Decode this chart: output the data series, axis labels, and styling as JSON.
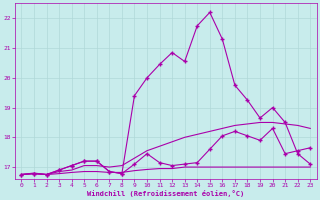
{
  "xlabel": "Windchill (Refroidissement éolien,°C)",
  "background_color": "#c8ecec",
  "grid_color": "#b0d8d8",
  "line_color": "#aa00aa",
  "xlim": [
    -0.5,
    23.5
  ],
  "ylim": [
    16.6,
    22.5
  ],
  "yticks": [
    17,
    18,
    19,
    20,
    21,
    22
  ],
  "xticks": [
    0,
    1,
    2,
    3,
    4,
    5,
    6,
    7,
    8,
    9,
    10,
    11,
    12,
    13,
    14,
    15,
    16,
    17,
    18,
    19,
    20,
    21,
    22,
    23
  ],
  "series": [
    {
      "x": [
        0,
        1,
        2,
        3,
        4,
        5,
        6,
        7,
        8,
        9,
        10,
        11,
        12,
        13,
        14,
        15,
        16,
        17,
        18,
        19,
        20,
        21,
        22,
        23
      ],
      "y": [
        16.75,
        16.78,
        16.75,
        16.78,
        16.82,
        16.85,
        16.85,
        16.82,
        16.82,
        16.88,
        16.92,
        16.95,
        16.95,
        17.0,
        17.0,
        17.0,
        17.0,
        17.0,
        17.0,
        17.0,
        17.0,
        17.0,
        17.0,
        17.0
      ],
      "marker": null,
      "linewidth": 0.8
    },
    {
      "x": [
        0,
        1,
        2,
        3,
        4,
        5,
        6,
        7,
        8,
        9,
        10,
        11,
        12,
        13,
        14,
        15,
        16,
        17,
        18,
        19,
        20,
        21,
        22,
        23
      ],
      "y": [
        16.75,
        16.8,
        16.75,
        16.85,
        16.9,
        17.05,
        17.05,
        17.0,
        17.05,
        17.3,
        17.55,
        17.7,
        17.85,
        18.0,
        18.1,
        18.2,
        18.3,
        18.4,
        18.45,
        18.5,
        18.5,
        18.45,
        18.4,
        18.3
      ],
      "marker": null,
      "linewidth": 0.8
    },
    {
      "x": [
        0,
        1,
        2,
        3,
        4,
        5,
        6,
        7,
        8,
        9,
        10,
        11,
        12,
        13,
        14,
        15,
        16,
        17,
        18,
        19,
        20,
        21,
        22,
        23
      ],
      "y": [
        16.75,
        16.78,
        16.75,
        16.9,
        17.05,
        17.2,
        17.2,
        16.85,
        16.78,
        17.1,
        17.45,
        17.15,
        17.05,
        17.1,
        17.15,
        17.6,
        18.05,
        18.2,
        18.05,
        17.9,
        18.3,
        17.45,
        17.55,
        17.65
      ],
      "marker": "+",
      "markersize": 3,
      "linewidth": 0.8
    },
    {
      "x": [
        0,
        1,
        2,
        3,
        4,
        5,
        6,
        7,
        8,
        9,
        10,
        11,
        12,
        13,
        14,
        15,
        16,
        17,
        18,
        19,
        20,
        21,
        22,
        23
      ],
      "y": [
        16.75,
        16.78,
        16.75,
        16.9,
        17.05,
        17.2,
        17.2,
        16.85,
        16.78,
        19.4,
        20.0,
        20.45,
        20.85,
        20.55,
        21.75,
        22.2,
        21.3,
        19.75,
        19.25,
        18.65,
        19.0,
        18.5,
        17.45,
        17.1
      ],
      "marker": "+",
      "markersize": 3,
      "linewidth": 0.8
    }
  ]
}
